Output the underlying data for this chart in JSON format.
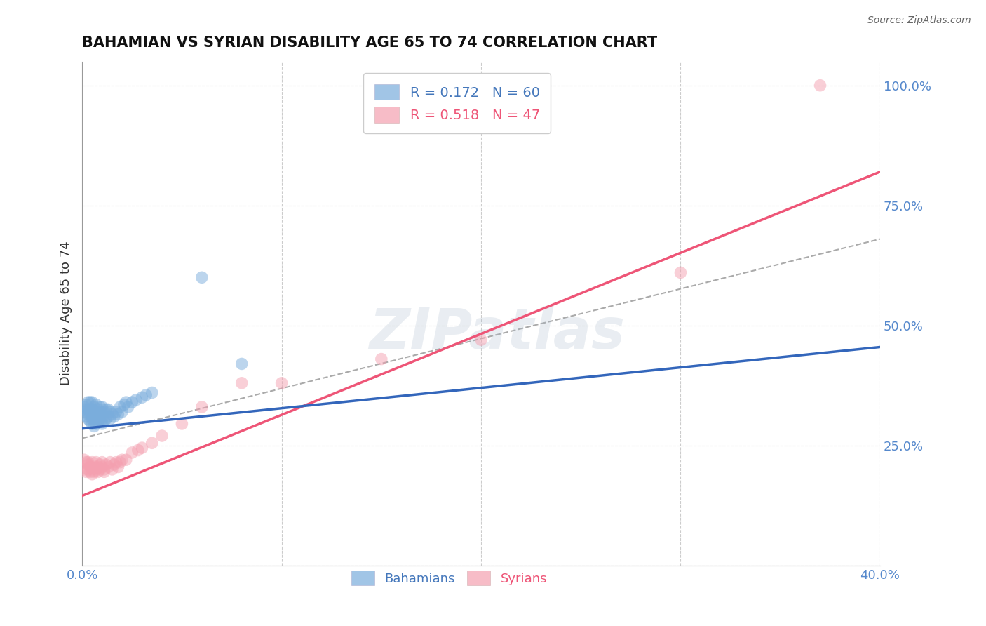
{
  "title": "BAHAMIAN VS SYRIAN DISABILITY AGE 65 TO 74 CORRELATION CHART",
  "source": "Source: ZipAtlas.com",
  "ylabel_label": "Disability Age 65 to 74",
  "xlim": [
    0.0,
    0.4
  ],
  "ylim": [
    0.0,
    1.05
  ],
  "xtick_positions": [
    0.0,
    0.1,
    0.2,
    0.3,
    0.4
  ],
  "xticklabels": [
    "0.0%",
    "",
    "",
    "",
    "40.0%"
  ],
  "ytick_positions": [
    0.0,
    0.25,
    0.5,
    0.75,
    1.0
  ],
  "yticklabels": [
    "",
    "25.0%",
    "50.0%",
    "75.0%",
    "100.0%"
  ],
  "grid_color": "#cccccc",
  "background_color": "#ffffff",
  "watermark": "ZIPatlas",
  "bahamian_R": 0.172,
  "bahamian_N": 60,
  "syrian_R": 0.518,
  "syrian_N": 47,
  "bahamian_color": "#7aaddc",
  "syrian_color": "#f4a0b0",
  "bahamian_line_color": "#3366bb",
  "syrian_line_color": "#ee5577",
  "gray_dashed_color": "#aaaaaa",
  "legend_bahamian_label": "Bahamians",
  "legend_syrian_label": "Syrians",
  "bahamian_x": [
    0.001,
    0.001,
    0.002,
    0.002,
    0.002,
    0.003,
    0.003,
    0.003,
    0.003,
    0.004,
    0.004,
    0.004,
    0.004,
    0.005,
    0.005,
    0.005,
    0.005,
    0.005,
    0.006,
    0.006,
    0.006,
    0.006,
    0.007,
    0.007,
    0.007,
    0.007,
    0.008,
    0.008,
    0.008,
    0.009,
    0.009,
    0.009,
    0.01,
    0.01,
    0.01,
    0.01,
    0.011,
    0.011,
    0.012,
    0.012,
    0.013,
    0.013,
    0.014,
    0.014,
    0.015,
    0.016,
    0.017,
    0.018,
    0.019,
    0.02,
    0.021,
    0.022,
    0.023,
    0.025,
    0.027,
    0.03,
    0.032,
    0.035,
    0.06,
    0.08
  ],
  "bahamian_y": [
    0.325,
    0.33,
    0.31,
    0.32,
    0.335,
    0.305,
    0.315,
    0.325,
    0.34,
    0.3,
    0.315,
    0.325,
    0.34,
    0.295,
    0.305,
    0.315,
    0.325,
    0.34,
    0.29,
    0.305,
    0.315,
    0.33,
    0.295,
    0.31,
    0.32,
    0.335,
    0.3,
    0.315,
    0.325,
    0.305,
    0.315,
    0.33,
    0.295,
    0.305,
    0.318,
    0.33,
    0.3,
    0.32,
    0.305,
    0.325,
    0.31,
    0.325,
    0.305,
    0.32,
    0.315,
    0.31,
    0.32,
    0.315,
    0.33,
    0.32,
    0.335,
    0.34,
    0.33,
    0.34,
    0.345,
    0.35,
    0.355,
    0.36,
    0.6,
    0.42
  ],
  "syrian_x": [
    0.001,
    0.001,
    0.002,
    0.002,
    0.003,
    0.003,
    0.003,
    0.004,
    0.004,
    0.005,
    0.005,
    0.005,
    0.006,
    0.006,
    0.007,
    0.007,
    0.008,
    0.008,
    0.009,
    0.009,
    0.01,
    0.01,
    0.011,
    0.011,
    0.012,
    0.013,
    0.014,
    0.015,
    0.016,
    0.017,
    0.018,
    0.019,
    0.02,
    0.022,
    0.025,
    0.028,
    0.03,
    0.035,
    0.04,
    0.05,
    0.06,
    0.08,
    0.1,
    0.15,
    0.2,
    0.3,
    0.37
  ],
  "syrian_y": [
    0.22,
    0.2,
    0.215,
    0.195,
    0.21,
    0.2,
    0.215,
    0.205,
    0.195,
    0.215,
    0.2,
    0.19,
    0.205,
    0.195,
    0.2,
    0.215,
    0.205,
    0.195,
    0.21,
    0.2,
    0.205,
    0.215,
    0.2,
    0.195,
    0.21,
    0.205,
    0.215,
    0.2,
    0.21,
    0.215,
    0.205,
    0.215,
    0.22,
    0.22,
    0.235,
    0.24,
    0.245,
    0.255,
    0.27,
    0.295,
    0.33,
    0.38,
    0.38,
    0.43,
    0.47,
    0.61,
    1.0
  ],
  "bahamian_trendline_x": [
    0.0,
    0.4
  ],
  "bahamian_trendline_y": [
    0.285,
    0.455
  ],
  "syrian_trendline_x": [
    0.0,
    0.4
  ],
  "syrian_trendline_y": [
    0.145,
    0.82
  ],
  "gray_trendline_x": [
    0.0,
    0.4
  ],
  "gray_trendline_y": [
    0.265,
    0.68
  ]
}
